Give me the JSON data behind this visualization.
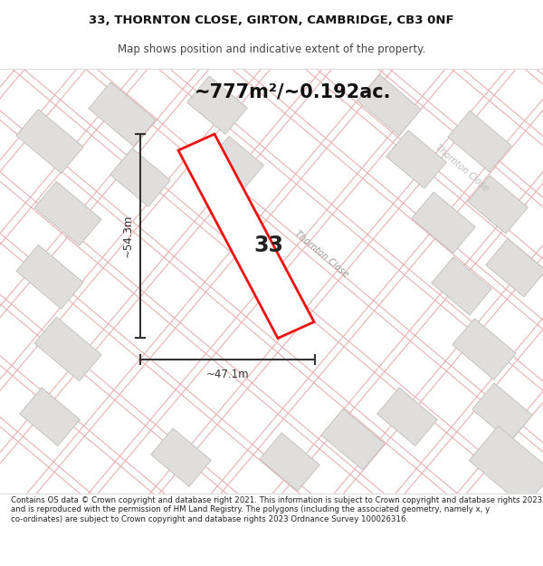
{
  "title_line1": "33, THORNTON CLOSE, GIRTON, CAMBRIDGE, CB3 0NF",
  "title_line2": "Map shows position and indicative extent of the property.",
  "area_text": "~777m²/~0.192ac.",
  "label_number": "33",
  "dim_width": "~47.1m",
  "dim_height": "~54.3m",
  "footer_text": "Contains OS data © Crown copyright and database right 2021. This information is subject to Crown copyright and database rights 2023 and is reproduced with the permission of HM Land Registry. The polygons (including the associated geometry, namely x, y co-ordinates) are subject to Crown copyright and database rights 2023 Ordnance Survey 100026316.",
  "map_bg": "#f7f5f2",
  "plot_edge_red": "#ee1111",
  "dim_color": "#333333",
  "title_color": "#111111",
  "footer_color": "#222222",
  "road_line_color": "#e8b0b0",
  "parcel_fill": "#e0dedd",
  "parcel_edge": "#c0bcb8",
  "road_fill": "#f0eeeb",
  "thornton_close_fill": "#e8e5e0"
}
